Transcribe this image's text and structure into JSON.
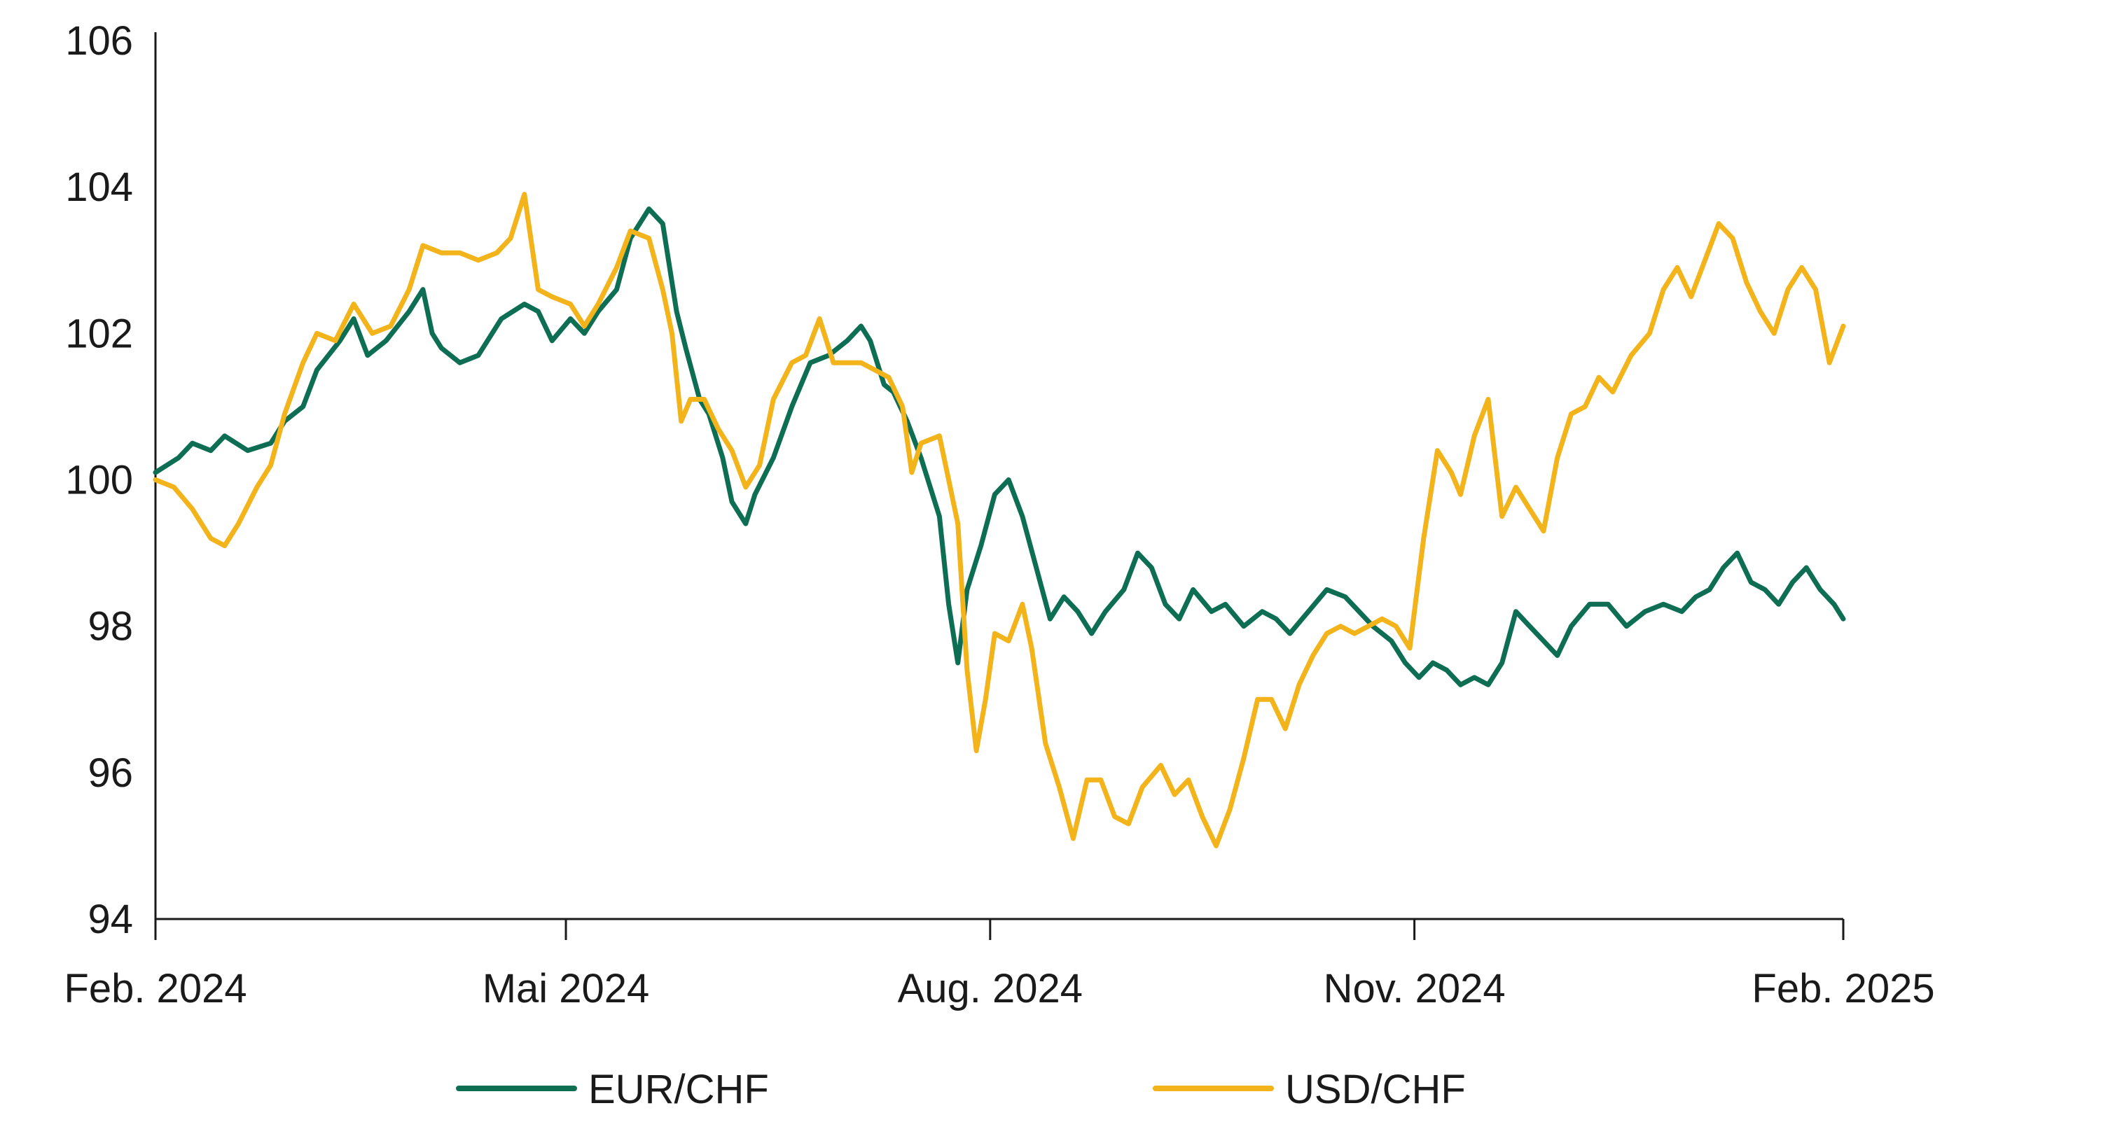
{
  "chart_data": {
    "type": "line",
    "title": "",
    "xlabel": "",
    "ylabel": "",
    "ylim": [
      94,
      106
    ],
    "yticks": [
      94,
      96,
      98,
      100,
      102,
      104,
      106
    ],
    "ytick_labels": [
      "94",
      "96",
      "98",
      "100",
      "102",
      "104",
      "106"
    ],
    "xticks": [
      {
        "label": "Feb. 2024",
        "value": 0
      },
      {
        "label": "Mai 2024",
        "value": 89
      },
      {
        "label": "Aug. 2024",
        "value": 181
      },
      {
        "label": "Nov. 2024",
        "value": 273
      },
      {
        "label": "Feb. 2025",
        "value": 366
      }
    ],
    "xlim": [
      0,
      366
    ],
    "grid": false,
    "legend_position": "bottom",
    "series": [
      {
        "name": "EUR/CHF",
        "color": "#0d6e54",
        "points": [
          [
            0,
            100.1
          ],
          [
            5,
            100.3
          ],
          [
            8,
            100.5
          ],
          [
            12,
            100.4
          ],
          [
            15,
            100.6
          ],
          [
            20,
            100.4
          ],
          [
            25,
            100.5
          ],
          [
            28,
            100.8
          ],
          [
            32,
            101.0
          ],
          [
            35,
            101.5
          ],
          [
            40,
            101.9
          ],
          [
            43,
            102.2
          ],
          [
            46,
            101.7
          ],
          [
            50,
            101.9
          ],
          [
            55,
            102.3
          ],
          [
            58,
            102.6
          ],
          [
            60,
            102.0
          ],
          [
            62,
            101.8
          ],
          [
            66,
            101.6
          ],
          [
            70,
            101.7
          ],
          [
            75,
            102.2
          ],
          [
            80,
            102.4
          ],
          [
            83,
            102.3
          ],
          [
            86,
            101.9
          ],
          [
            90,
            102.2
          ],
          [
            93,
            102.0
          ],
          [
            96,
            102.3
          ],
          [
            100,
            102.6
          ],
          [
            103,
            103.3
          ],
          [
            107,
            103.7
          ],
          [
            110,
            103.5
          ],
          [
            113,
            102.3
          ],
          [
            115,
            101.8
          ],
          [
            118,
            101.1
          ],
          [
            120,
            100.9
          ],
          [
            123,
            100.3
          ],
          [
            125,
            99.7
          ],
          [
            128,
            99.4
          ],
          [
            130,
            99.8
          ],
          [
            134,
            100.3
          ],
          [
            138,
            101.0
          ],
          [
            142,
            101.6
          ],
          [
            146,
            101.7
          ],
          [
            150,
            101.9
          ],
          [
            153,
            102.1
          ],
          [
            155,
            101.9
          ],
          [
            158,
            101.3
          ],
          [
            160,
            101.2
          ],
          [
            163,
            100.8
          ],
          [
            166,
            100.3
          ],
          [
            170,
            99.5
          ],
          [
            172,
            98.3
          ],
          [
            174,
            97.5
          ],
          [
            176,
            98.5
          ],
          [
            179,
            99.1
          ],
          [
            182,
            99.8
          ],
          [
            185,
            100.0
          ],
          [
            188,
            99.5
          ],
          [
            191,
            98.8
          ],
          [
            194,
            98.1
          ],
          [
            197,
            98.4
          ],
          [
            200,
            98.2
          ],
          [
            203,
            97.9
          ],
          [
            206,
            98.2
          ],
          [
            210,
            98.5
          ],
          [
            213,
            99.0
          ],
          [
            216,
            98.8
          ],
          [
            219,
            98.3
          ],
          [
            222,
            98.1
          ],
          [
            225,
            98.5
          ],
          [
            229,
            98.2
          ],
          [
            232,
            98.3
          ],
          [
            236,
            98.0
          ],
          [
            240,
            98.2
          ],
          [
            243,
            98.1
          ],
          [
            246,
            97.9
          ],
          [
            250,
            98.2
          ],
          [
            254,
            98.5
          ],
          [
            258,
            98.4
          ],
          [
            261,
            98.2
          ],
          [
            264,
            98.0
          ],
          [
            268,
            97.8
          ],
          [
            271,
            97.5
          ],
          [
            274,
            97.3
          ],
          [
            277,
            97.5
          ],
          [
            280,
            97.4
          ],
          [
            283,
            97.2
          ],
          [
            286,
            97.3
          ],
          [
            289,
            97.2
          ],
          [
            292,
            97.5
          ],
          [
            295,
            98.2
          ],
          [
            298,
            98.0
          ],
          [
            301,
            97.8
          ],
          [
            304,
            97.6
          ],
          [
            307,
            98.0
          ],
          [
            311,
            98.3
          ],
          [
            315,
            98.3
          ],
          [
            319,
            98.0
          ],
          [
            323,
            98.2
          ],
          [
            327,
            98.3
          ],
          [
            331,
            98.2
          ],
          [
            334,
            98.4
          ],
          [
            337,
            98.5
          ],
          [
            340,
            98.8
          ],
          [
            343,
            99.0
          ],
          [
            346,
            98.6
          ],
          [
            349,
            98.5
          ],
          [
            352,
            98.3
          ],
          [
            355,
            98.6
          ],
          [
            358,
            98.8
          ],
          [
            361,
            98.5
          ],
          [
            364,
            98.3
          ],
          [
            366,
            98.1
          ]
        ]
      },
      {
        "name": "USD/CHF",
        "color": "#f2b31b",
        "points": [
          [
            0,
            100.0
          ],
          [
            4,
            99.9
          ],
          [
            8,
            99.6
          ],
          [
            12,
            99.2
          ],
          [
            15,
            99.1
          ],
          [
            18,
            99.4
          ],
          [
            22,
            99.9
          ],
          [
            25,
            100.2
          ],
          [
            28,
            100.9
          ],
          [
            32,
            101.6
          ],
          [
            35,
            102.0
          ],
          [
            39,
            101.9
          ],
          [
            43,
            102.4
          ],
          [
            47,
            102.0
          ],
          [
            51,
            102.1
          ],
          [
            55,
            102.6
          ],
          [
            58,
            103.2
          ],
          [
            62,
            103.1
          ],
          [
            66,
            103.1
          ],
          [
            70,
            103.0
          ],
          [
            74,
            103.1
          ],
          [
            77,
            103.3
          ],
          [
            80,
            103.9
          ],
          [
            83,
            102.6
          ],
          [
            86,
            102.5
          ],
          [
            90,
            102.4
          ],
          [
            93,
            102.1
          ],
          [
            96,
            102.4
          ],
          [
            100,
            102.9
          ],
          [
            103,
            103.4
          ],
          [
            107,
            103.3
          ],
          [
            110,
            102.6
          ],
          [
            112,
            102.0
          ],
          [
            114,
            100.8
          ],
          [
            116,
            101.1
          ],
          [
            119,
            101.1
          ],
          [
            122,
            100.7
          ],
          [
            125,
            100.4
          ],
          [
            128,
            99.9
          ],
          [
            131,
            100.2
          ],
          [
            134,
            101.1
          ],
          [
            138,
            101.6
          ],
          [
            141,
            101.7
          ],
          [
            144,
            102.2
          ],
          [
            147,
            101.6
          ],
          [
            150,
            101.6
          ],
          [
            153,
            101.6
          ],
          [
            156,
            101.5
          ],
          [
            159,
            101.4
          ],
          [
            162,
            101.0
          ],
          [
            164,
            100.1
          ],
          [
            166,
            100.5
          ],
          [
            170,
            100.6
          ],
          [
            172,
            100.0
          ],
          [
            174,
            99.4
          ],
          [
            176,
            97.4
          ],
          [
            178,
            96.3
          ],
          [
            180,
            97.0
          ],
          [
            182,
            97.9
          ],
          [
            185,
            97.8
          ],
          [
            188,
            98.3
          ],
          [
            190,
            97.7
          ],
          [
            193,
            96.4
          ],
          [
            196,
            95.8
          ],
          [
            199,
            95.1
          ],
          [
            202,
            95.9
          ],
          [
            205,
            95.9
          ],
          [
            208,
            95.4
          ],
          [
            211,
            95.3
          ],
          [
            214,
            95.8
          ],
          [
            218,
            96.1
          ],
          [
            221,
            95.7
          ],
          [
            224,
            95.9
          ],
          [
            227,
            95.4
          ],
          [
            230,
            95.0
          ],
          [
            233,
            95.5
          ],
          [
            236,
            96.2
          ],
          [
            239,
            97.0
          ],
          [
            242,
            97.0
          ],
          [
            245,
            96.6
          ],
          [
            248,
            97.2
          ],
          [
            251,
            97.6
          ],
          [
            254,
            97.9
          ],
          [
            257,
            98.0
          ],
          [
            260,
            97.9
          ],
          [
            263,
            98.0
          ],
          [
            266,
            98.1
          ],
          [
            269,
            98.0
          ],
          [
            272,
            97.7
          ],
          [
            275,
            99.2
          ],
          [
            278,
            100.4
          ],
          [
            281,
            100.1
          ],
          [
            283,
            99.8
          ],
          [
            286,
            100.6
          ],
          [
            289,
            101.1
          ],
          [
            292,
            99.5
          ],
          [
            295,
            99.9
          ],
          [
            298,
            99.6
          ],
          [
            301,
            99.3
          ],
          [
            304,
            100.3
          ],
          [
            307,
            100.9
          ],
          [
            310,
            101.0
          ],
          [
            313,
            101.4
          ],
          [
            316,
            101.2
          ],
          [
            320,
            101.7
          ],
          [
            324,
            102.0
          ],
          [
            327,
            102.6
          ],
          [
            330,
            102.9
          ],
          [
            333,
            102.5
          ],
          [
            336,
            103.0
          ],
          [
            339,
            103.5
          ],
          [
            342,
            103.3
          ],
          [
            345,
            102.7
          ],
          [
            348,
            102.3
          ],
          [
            351,
            102.0
          ],
          [
            354,
            102.6
          ],
          [
            357,
            102.9
          ],
          [
            360,
            102.6
          ],
          [
            363,
            101.6
          ],
          [
            366,
            102.1
          ]
        ]
      }
    ]
  }
}
